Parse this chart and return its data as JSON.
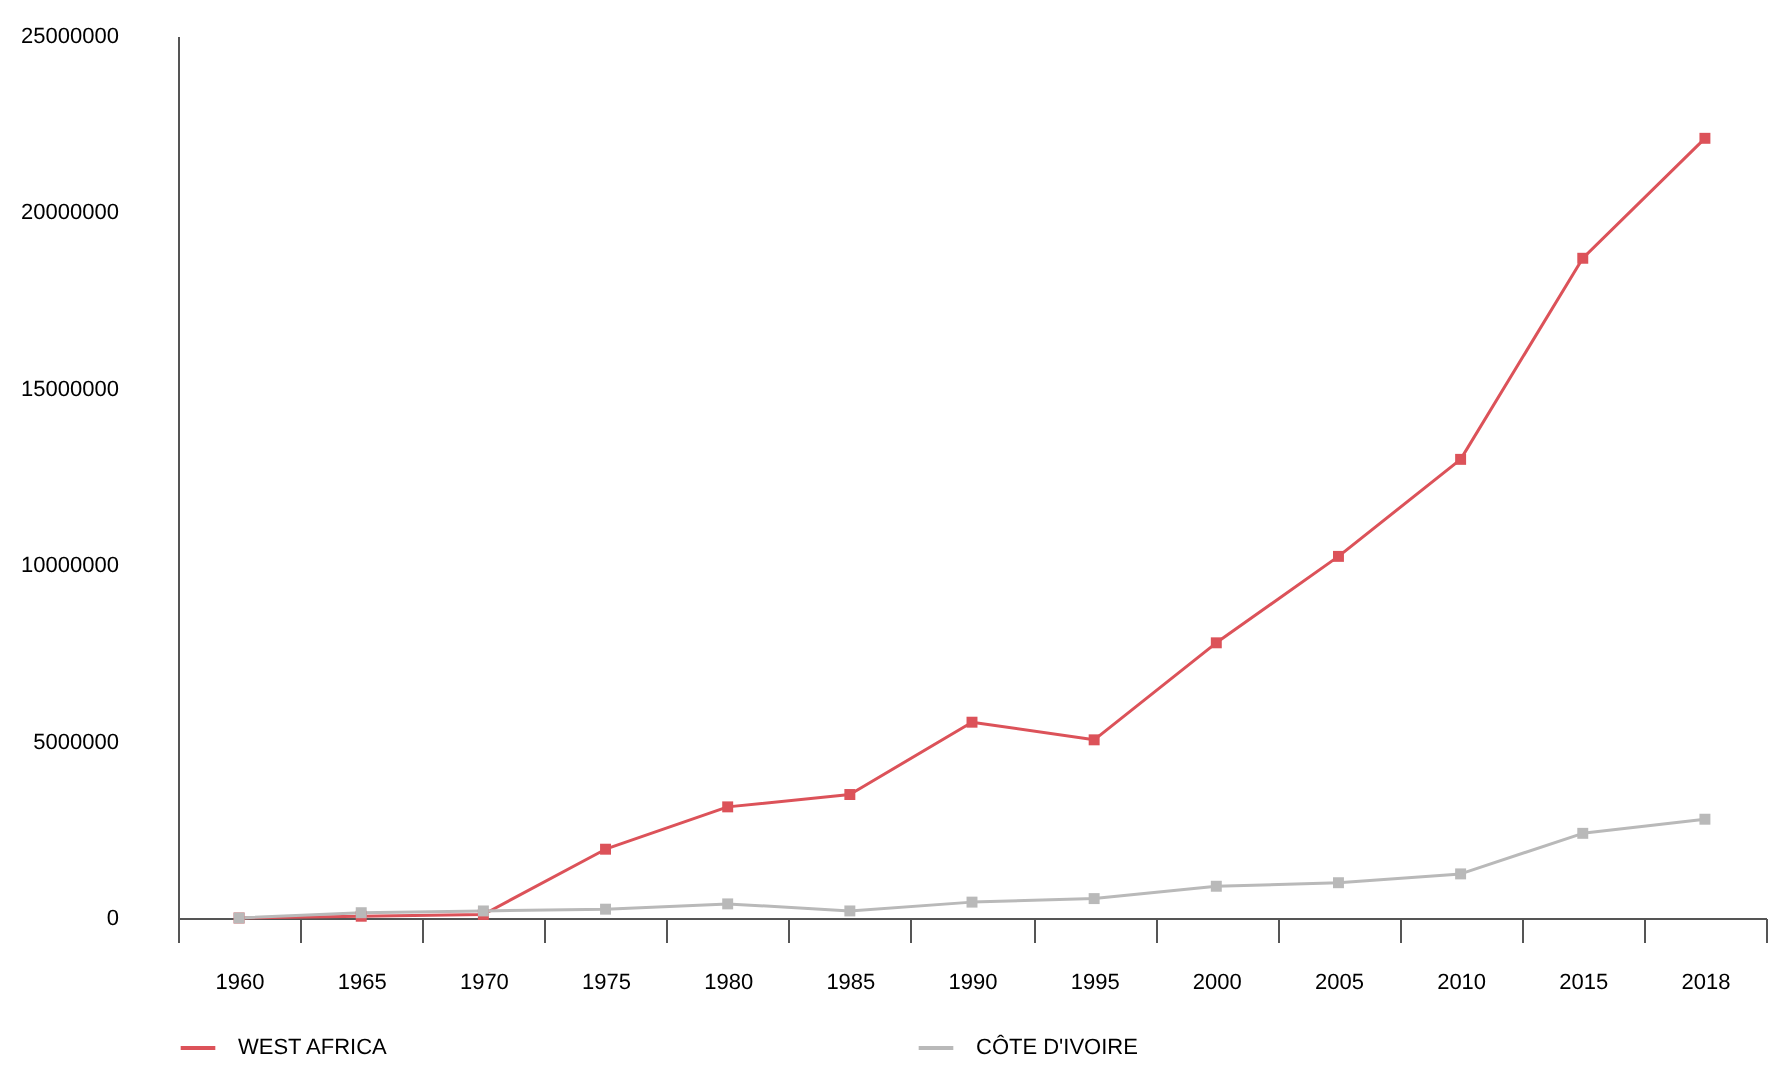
{
  "chart_data": {
    "type": "line",
    "categories": [
      "1960",
      "1965",
      "1970",
      "1975",
      "1980",
      "1985",
      "1990",
      "1995",
      "2000",
      "2005",
      "2010",
      "2015",
      "2018"
    ],
    "series": [
      {
        "name": "WEST AFRICA",
        "color": "#dc5259",
        "values": [
          0,
          50000,
          100000,
          1950000,
          3150000,
          3500000,
          5550000,
          5050000,
          7800000,
          10250000,
          13000000,
          18700000,
          22100000
        ]
      },
      {
        "name": "CÔTE D'IVOIRE",
        "color": "#b9b9b9",
        "values": [
          0,
          150000,
          200000,
          250000,
          400000,
          200000,
          450000,
          550000,
          900000,
          1000000,
          1250000,
          2400000,
          2800000
        ]
      }
    ],
    "ylim": [
      0,
      25000000
    ],
    "yticks": [
      0,
      5000000,
      10000000,
      15000000,
      20000000,
      25000000
    ],
    "grid": false,
    "legend": "bottom",
    "marker": "square",
    "line_style": "solid"
  }
}
